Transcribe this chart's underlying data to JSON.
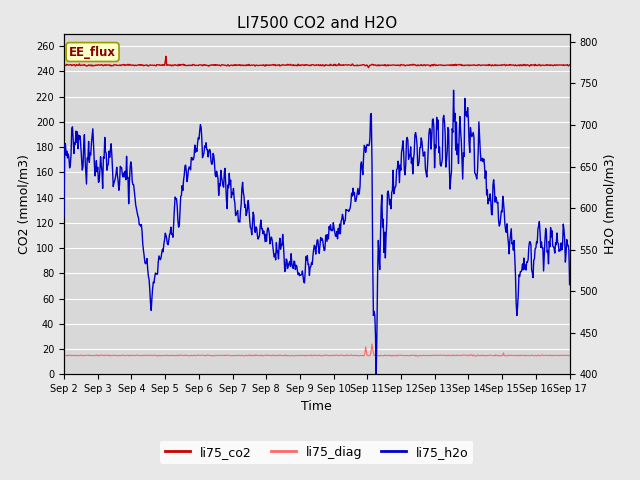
{
  "title": "LI7500 CO2 and H2O",
  "xlabel": "Time",
  "ylabel_left": "CO2 (mmol/m3)",
  "ylabel_right": "H2O (mmol/m3)",
  "ylim_left": [
    0,
    270
  ],
  "ylim_right": [
    400,
    810
  ],
  "fig_bg_color": "#e8e8e8",
  "plot_bg_color": "#d8d8d8",
  "annotation_text": "EE_flux",
  "annotation_box_color": "#ffffcc",
  "annotation_box_edge": "#999900",
  "xtick_labels": [
    "Sep 2",
    "Sep 3",
    "Sep 4",
    "Sep 5",
    "Sep 6",
    "Sep 7",
    "Sep 8",
    "Sep 9",
    "Sep 10",
    "Sep 11 ",
    "Sep 12 ",
    "Sep 13 ",
    "Sep 14 ",
    "Sep 15 ",
    "Sep 16 ",
    "Sep 17"
  ],
  "xtick_positions": [
    0,
    1,
    2,
    3,
    4,
    5,
    6,
    7,
    8,
    9,
    10,
    11,
    12,
    13,
    14,
    15
  ],
  "yticks_left": [
    0,
    20,
    40,
    60,
    80,
    100,
    120,
    140,
    160,
    180,
    200,
    220,
    240,
    260
  ],
  "yticks_right": [
    400,
    450,
    500,
    550,
    600,
    650,
    700,
    750,
    800
  ],
  "legend_labels": [
    "li75_co2",
    "li75_diag",
    "li75_h2o"
  ],
  "co2_color": "#cc0000",
  "diag_color": "#ff6666",
  "h2o_color": "#0000cc",
  "grid_color": "#ffffff",
  "title_fontsize": 11,
  "tick_fontsize": 7,
  "axis_label_fontsize": 9,
  "legend_fontsize": 9
}
